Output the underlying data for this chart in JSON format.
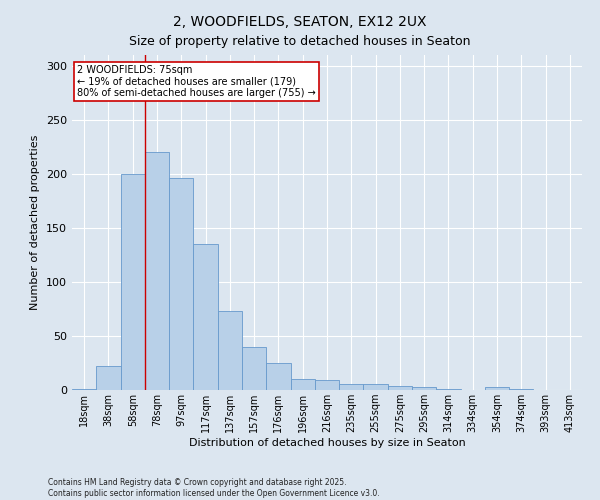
{
  "title1": "2, WOODFIELDS, SEATON, EX12 2UX",
  "title2": "Size of property relative to detached houses in Seaton",
  "xlabel": "Distribution of detached houses by size in Seaton",
  "ylabel": "Number of detached properties",
  "categories": [
    "18sqm",
    "38sqm",
    "58sqm",
    "78sqm",
    "97sqm",
    "117sqm",
    "137sqm",
    "157sqm",
    "176sqm",
    "196sqm",
    "216sqm",
    "235sqm",
    "255sqm",
    "275sqm",
    "295sqm",
    "314sqm",
    "334sqm",
    "354sqm",
    "374sqm",
    "393sqm",
    "413sqm"
  ],
  "values": [
    1,
    22,
    200,
    220,
    196,
    135,
    73,
    40,
    25,
    10,
    9,
    6,
    6,
    4,
    3,
    1,
    0,
    3,
    1,
    0,
    0
  ],
  "bar_color": "#b8d0e8",
  "bar_edge_color": "#6699cc",
  "background_color": "#dce6f0",
  "grid_color": "#ffffff",
  "vline_x_index": 3,
  "vline_color": "#cc0000",
  "annotation_text": "2 WOODFIELDS: 75sqm\n← 19% of detached houses are smaller (179)\n80% of semi-detached houses are larger (755) →",
  "annotation_box_color": "#ffffff",
  "annotation_box_edge_color": "#cc0000",
  "footer": "Contains HM Land Registry data © Crown copyright and database right 2025.\nContains public sector information licensed under the Open Government Licence v3.0.",
  "ylim": [
    0,
    310
  ],
  "yticks": [
    0,
    50,
    100,
    150,
    200,
    250,
    300
  ],
  "title1_fontsize": 10,
  "title2_fontsize": 9,
  "ylabel_fontsize": 8,
  "xlabel_fontsize": 8,
  "tick_fontsize": 7
}
